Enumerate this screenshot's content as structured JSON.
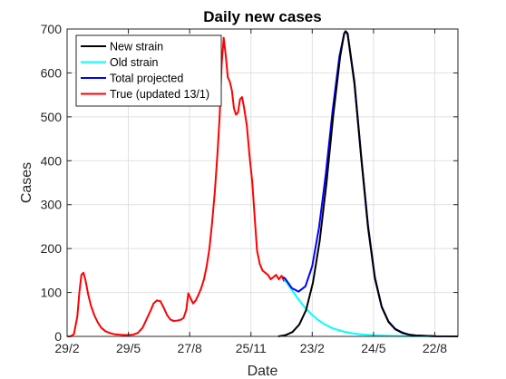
{
  "chart_data": {
    "type": "line",
    "title": "Daily new cases",
    "xlabel": "Date",
    "ylabel": "Cases",
    "xlim": [
      "2020-02-29",
      "2021-09-25"
    ],
    "ylim": [
      0,
      700
    ],
    "x_ticks": [
      {
        "date": "2020-02-29",
        "label": "29/2"
      },
      {
        "date": "2020-05-29",
        "label": "29/5"
      },
      {
        "date": "2020-08-27",
        "label": "27/8"
      },
      {
        "date": "2020-11-25",
        "label": "25/11"
      },
      {
        "date": "2021-02-23",
        "label": "23/2"
      },
      {
        "date": "2021-05-24",
        "label": "24/5"
      },
      {
        "date": "2021-08-22",
        "label": "22/8"
      }
    ],
    "y_ticks": [
      0,
      100,
      200,
      300,
      400,
      500,
      600,
      700
    ],
    "grid": true,
    "legend": {
      "position": "top-left"
    },
    "series": [
      {
        "name": "New strain",
        "color": "#000000",
        "points": [
          [
            "2021-01-04",
            0
          ],
          [
            "2021-01-15",
            3
          ],
          [
            "2021-01-25",
            10
          ],
          [
            "2021-02-04",
            27
          ],
          [
            "2021-02-14",
            60
          ],
          [
            "2021-02-24",
            122
          ],
          [
            "2021-03-06",
            218
          ],
          [
            "2021-03-16",
            350
          ],
          [
            "2021-03-26",
            505
          ],
          [
            "2021-04-05",
            637
          ],
          [
            "2021-04-11",
            690
          ],
          [
            "2021-04-13",
            695
          ],
          [
            "2021-04-16",
            688
          ],
          [
            "2021-04-26",
            575
          ],
          [
            "2021-05-06",
            405
          ],
          [
            "2021-05-16",
            247
          ],
          [
            "2021-05-26",
            132
          ],
          [
            "2021-06-05",
            67
          ],
          [
            "2021-06-15",
            33
          ],
          [
            "2021-06-25",
            16
          ],
          [
            "2021-07-05",
            8
          ],
          [
            "2021-07-15",
            4
          ],
          [
            "2021-07-25",
            2
          ],
          [
            "2021-08-24",
            0.3
          ],
          [
            "2021-09-25",
            0
          ]
        ]
      },
      {
        "name": "Old strain",
        "color": "#00ffff",
        "points": [
          [
            "2021-01-13",
            130
          ],
          [
            "2021-01-23",
            108
          ],
          [
            "2021-02-02",
            86
          ],
          [
            "2021-02-12",
            66
          ],
          [
            "2021-02-22",
            50
          ],
          [
            "2021-03-04",
            37
          ],
          [
            "2021-03-14",
            27
          ],
          [
            "2021-03-24",
            19
          ],
          [
            "2021-04-03",
            14
          ],
          [
            "2021-04-13",
            10
          ],
          [
            "2021-04-23",
            7
          ],
          [
            "2021-05-03",
            5
          ],
          [
            "2021-05-23",
            2.5
          ],
          [
            "2021-06-22",
            1
          ],
          [
            "2021-07-22",
            0.4
          ],
          [
            "2021-09-25",
            0
          ]
        ]
      },
      {
        "name": "Total projected",
        "color": "#0000ff",
        "points": [
          [
            "2021-01-11",
            135
          ],
          [
            "2021-01-14",
            132
          ],
          [
            "2021-01-24",
            110
          ],
          [
            "2021-02-03",
            102
          ],
          [
            "2021-02-13",
            114
          ],
          [
            "2021-02-23",
            160
          ],
          [
            "2021-03-05",
            248
          ],
          [
            "2021-03-15",
            370
          ],
          [
            "2021-03-25",
            515
          ],
          [
            "2021-04-04",
            638
          ],
          [
            "2021-04-11",
            690
          ],
          [
            "2021-04-13",
            695
          ],
          [
            "2021-04-16",
            690
          ],
          [
            "2021-04-26",
            580
          ],
          [
            "2021-05-06",
            410
          ],
          [
            "2021-05-16",
            252
          ],
          [
            "2021-05-26",
            135
          ],
          [
            "2021-06-05",
            68
          ],
          [
            "2021-06-15",
            34
          ],
          [
            "2021-06-25",
            17
          ],
          [
            "2021-07-05",
            9
          ],
          [
            "2021-07-15",
            4
          ],
          [
            "2021-07-25",
            2
          ],
          [
            "2021-08-24",
            0.3
          ],
          [
            "2021-09-25",
            0
          ]
        ]
      },
      {
        "name": "True (updated 13/1)",
        "color": "#ff0000",
        "points": [
          [
            "2020-02-29",
            0
          ],
          [
            "2020-03-05",
            0
          ],
          [
            "2020-03-10",
            5
          ],
          [
            "2020-03-15",
            45
          ],
          [
            "2020-03-18",
            100
          ],
          [
            "2020-03-21",
            140
          ],
          [
            "2020-03-24",
            145
          ],
          [
            "2020-03-27",
            128
          ],
          [
            "2020-03-31",
            95
          ],
          [
            "2020-04-04",
            70
          ],
          [
            "2020-04-09",
            48
          ],
          [
            "2020-04-14",
            32
          ],
          [
            "2020-04-19",
            20
          ],
          [
            "2020-04-25",
            12
          ],
          [
            "2020-05-01",
            8
          ],
          [
            "2020-05-08",
            5
          ],
          [
            "2020-05-15",
            4
          ],
          [
            "2020-05-22",
            3
          ],
          [
            "2020-05-29",
            3
          ],
          [
            "2020-06-05",
            4
          ],
          [
            "2020-06-12",
            8
          ],
          [
            "2020-06-19",
            20
          ],
          [
            "2020-06-25",
            40
          ],
          [
            "2020-07-01",
            60
          ],
          [
            "2020-07-05",
            75
          ],
          [
            "2020-07-10",
            82
          ],
          [
            "2020-07-15",
            80
          ],
          [
            "2020-07-20",
            65
          ],
          [
            "2020-07-25",
            48
          ],
          [
            "2020-07-30",
            38
          ],
          [
            "2020-08-04",
            35
          ],
          [
            "2020-08-09",
            36
          ],
          [
            "2020-08-14",
            38
          ],
          [
            "2020-08-18",
            42
          ],
          [
            "2020-08-22",
            60
          ],
          [
            "2020-08-25",
            98
          ],
          [
            "2020-08-28",
            88
          ],
          [
            "2020-09-01",
            75
          ],
          [
            "2020-09-05",
            82
          ],
          [
            "2020-09-09",
            95
          ],
          [
            "2020-09-13",
            110
          ],
          [
            "2020-09-17",
            130
          ],
          [
            "2020-09-21",
            160
          ],
          [
            "2020-09-25",
            200
          ],
          [
            "2020-09-29",
            260
          ],
          [
            "2020-10-03",
            330
          ],
          [
            "2020-10-07",
            420
          ],
          [
            "2020-10-10",
            500
          ],
          [
            "2020-10-13",
            620
          ],
          [
            "2020-10-16",
            680
          ],
          [
            "2020-10-19",
            640
          ],
          [
            "2020-10-22",
            590
          ],
          [
            "2020-10-25",
            580
          ],
          [
            "2020-10-28",
            560
          ],
          [
            "2020-10-31",
            520
          ],
          [
            "2020-11-03",
            505
          ],
          [
            "2020-11-06",
            510
          ],
          [
            "2020-11-09",
            540
          ],
          [
            "2020-11-12",
            545
          ],
          [
            "2020-11-15",
            520
          ],
          [
            "2020-11-19",
            480
          ],
          [
            "2020-11-23",
            410
          ],
          [
            "2020-11-27",
            350
          ],
          [
            "2020-12-01",
            260
          ],
          [
            "2020-12-04",
            195
          ],
          [
            "2020-12-08",
            165
          ],
          [
            "2020-12-12",
            150
          ],
          [
            "2020-12-16",
            145
          ],
          [
            "2020-12-20",
            140
          ],
          [
            "2020-12-24",
            130
          ],
          [
            "2020-12-28",
            135
          ],
          [
            "2021-01-01",
            140
          ],
          [
            "2021-01-05",
            130
          ],
          [
            "2021-01-09",
            138
          ],
          [
            "2021-01-13",
            125
          ]
        ]
      }
    ]
  }
}
